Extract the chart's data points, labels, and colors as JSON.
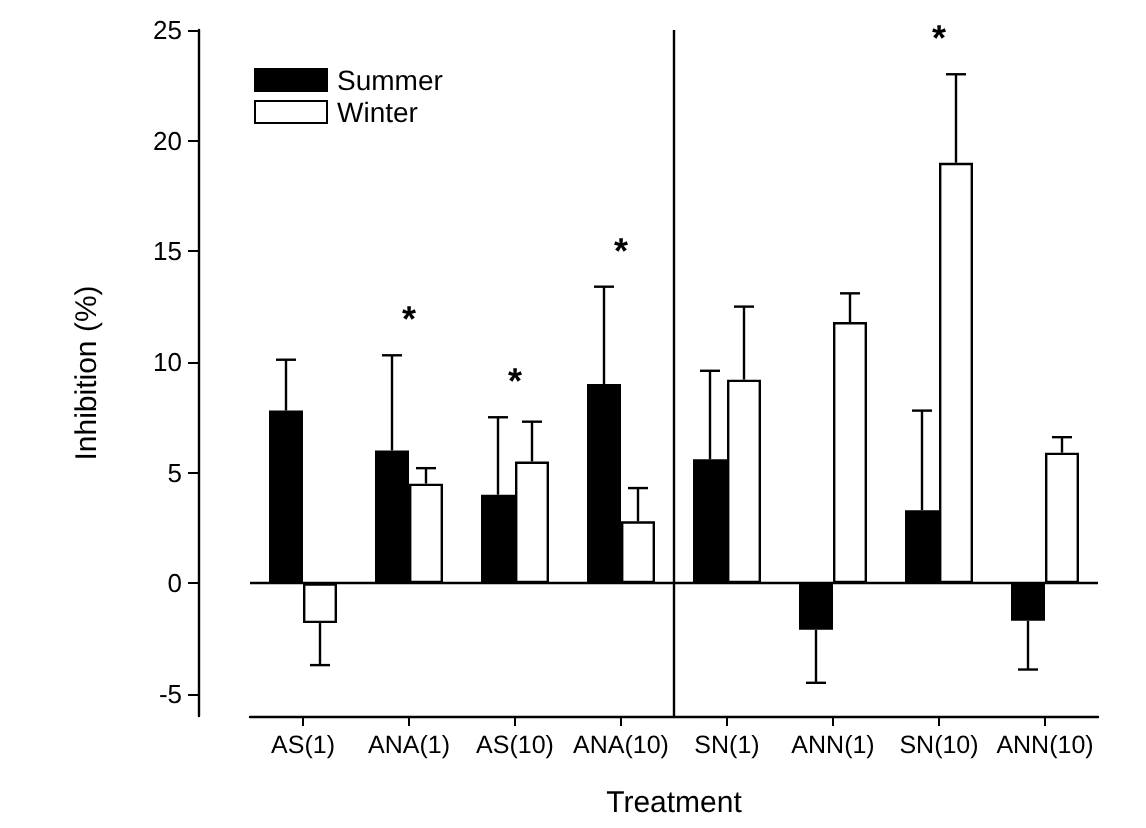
{
  "chart_data": {
    "type": "bar",
    "xlabel": "Treatment",
    "ylabel": "Inhibition (%)",
    "categories": [
      "AS(1)",
      "ANA(1)",
      "AS(10)",
      "ANA(10)",
      "SN(1)",
      "ANN(1)",
      "SN(10)",
      "ANN(10)"
    ],
    "series": [
      {
        "name": "Summer",
        "color": "#000000",
        "values": [
          7.8,
          6.0,
          4.0,
          9.0,
          5.6,
          -2.1,
          3.3,
          -1.7
        ],
        "errors": [
          [
            7.8,
            10.1
          ],
          [
            6.0,
            10.3
          ],
          [
            4.0,
            7.5
          ],
          [
            9.0,
            13.4
          ],
          [
            5.6,
            9.6
          ],
          [
            -4.5,
            -2.1
          ],
          [
            3.3,
            7.8
          ],
          [
            -3.9,
            -1.7
          ]
        ]
      },
      {
        "name": "Winter",
        "color": "#ffffff",
        "values": [
          -1.8,
          4.5,
          5.5,
          2.8,
          9.2,
          11.8,
          19.0,
          5.9
        ],
        "errors": [
          [
            -3.7,
            -1.8
          ],
          [
            4.5,
            5.2
          ],
          [
            5.5,
            7.3
          ],
          [
            2.8,
            4.3
          ],
          [
            9.2,
            12.5
          ],
          [
            11.8,
            13.1
          ],
          [
            19.0,
            23.0
          ],
          [
            5.9,
            6.6
          ]
        ]
      }
    ],
    "ylim": [
      -6,
      25
    ],
    "yticks": [
      -5,
      0,
      5,
      10,
      15,
      20,
      25
    ],
    "grid": false,
    "legend": "top left",
    "ref_lines": [
      {
        "axis": "y",
        "value": 0
      }
    ],
    "annotations": [
      {
        "text": "*",
        "x": "ANA(1)",
        "y": 10.3
      },
      {
        "text": "*",
        "x": "AS(10)",
        "y": 7.5
      },
      {
        "text": "*",
        "x": "ANA(10)",
        "y": 13.4
      },
      {
        "text": "*",
        "x": "SN(10)",
        "y": 23.0
      }
    ]
  }
}
